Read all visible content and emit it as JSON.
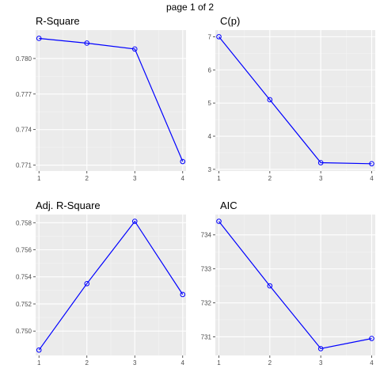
{
  "page": {
    "label": "page 1 of 2"
  },
  "colors": {
    "panel_bg": "#ebebeb",
    "grid_major": "#ffffff",
    "grid_minor": "#f4f4f4",
    "line": "#0000ff",
    "tick_text": "#4d4d4d"
  },
  "chart_data": [
    {
      "type": "line",
      "title": "R-Square",
      "x": [
        1,
        2,
        3,
        4
      ],
      "values": [
        0.7817,
        0.7813,
        0.7808,
        0.7713
      ],
      "xlim": [
        0.93,
        4.07
      ],
      "ylim": [
        0.7705,
        0.7824
      ],
      "xticks": [
        1,
        2,
        3,
        4
      ],
      "yticks": [
        0.771,
        0.774,
        0.777,
        0.78
      ],
      "ytick_labels": [
        "0.771",
        "0.774",
        "0.777",
        "0.780"
      ],
      "markers": "open-circle",
      "grid": true
    },
    {
      "type": "line",
      "title": "C(p)",
      "x": [
        1,
        2,
        3,
        4
      ],
      "values": [
        7.0,
        5.1,
        3.2,
        3.17
      ],
      "xlim": [
        0.93,
        4.07
      ],
      "ylim": [
        2.95,
        7.2
      ],
      "xticks": [
        1,
        2,
        3,
        4
      ],
      "yticks": [
        3,
        4,
        5,
        6,
        7
      ],
      "ytick_labels": [
        "3",
        "4",
        "5",
        "6",
        "7"
      ],
      "markers": "open-circle",
      "grid": true
    },
    {
      "type": "line",
      "title": "Adj. R-Square",
      "x": [
        1,
        2,
        3,
        4
      ],
      "values": [
        0.7486,
        0.7535,
        0.7581,
        0.7527
      ],
      "xlim": [
        0.93,
        4.07
      ],
      "ylim": [
        0.7482,
        0.7586
      ],
      "xticks": [
        1,
        2,
        3,
        4
      ],
      "yticks": [
        0.75,
        0.752,
        0.754,
        0.756,
        0.758
      ],
      "ytick_labels": [
        "0.750",
        "0.752",
        "0.754",
        "0.756",
        "0.758"
      ],
      "markers": "open-circle",
      "grid": true
    },
    {
      "type": "line",
      "title": "AIC",
      "x": [
        1,
        2,
        3,
        4
      ],
      "values": [
        734.4,
        732.5,
        730.65,
        730.95
      ],
      "xlim": [
        0.93,
        4.07
      ],
      "ylim": [
        730.45,
        734.6
      ],
      "xticks": [
        1,
        2,
        3,
        4
      ],
      "yticks": [
        731,
        732,
        733,
        734
      ],
      "ytick_labels": [
        "731",
        "732",
        "733",
        "734"
      ],
      "markers": "open-circle",
      "grid": true
    }
  ]
}
